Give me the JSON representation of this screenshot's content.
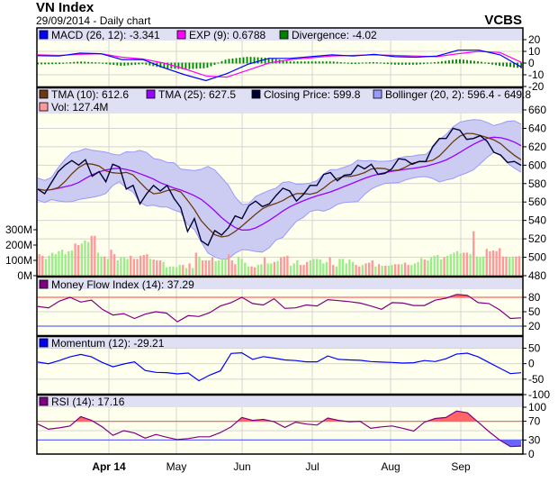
{
  "header": {
    "title": "VN Index",
    "subtitle": "29/09/2014 - Daily chart",
    "source": "VCBS"
  },
  "colors": {
    "plot_bg": "#ffffee",
    "legend_bg": "#e0e0f4",
    "grid": "#d4d4d4",
    "macd": "#0000ff",
    "exp": "#ff00ff",
    "divergence": "#008000",
    "tma10": "#6b3a10",
    "tma25": "#9900ff",
    "close": "#000033",
    "bollinger_fill": "#ccccf2",
    "bollinger_line": "#9999ff",
    "vol_up": "#99ee88",
    "vol_down": "#ff9999",
    "mfi": "#800080",
    "momentum": "#0000ff",
    "rsi": "#800080",
    "overbought": "#ff6666",
    "oversold": "#6666ff"
  },
  "chart_data": {
    "type": "line",
    "title": "VN Index",
    "subtitle": "29/09/2014 - Daily chart",
    "x_ticks": [
      {
        "label": "Apr 14",
        "bold": true
      },
      {
        "label": "May",
        "bold": false
      },
      {
        "label": "Jun",
        "bold": false
      },
      {
        "label": "Jul",
        "bold": false
      },
      {
        "label": "Aug",
        "bold": false
      },
      {
        "label": "Sep",
        "bold": false
      }
    ],
    "grid": true,
    "macd_panel": {
      "legend": {
        "macd": "MACD (26, 12): -3.341",
        "exp": "EXP (9): 0.6788",
        "divergence": "Divergence: -4.02"
      },
      "ylim": [
        -20,
        20
      ],
      "y_ticks": [
        "20",
        "10",
        "0",
        "-10",
        "-20"
      ],
      "macd": [
        6.3,
        6,
        8.5,
        8,
        3,
        3,
        -4,
        -10,
        -15,
        -9,
        -1,
        4,
        4,
        5.5,
        7,
        6,
        7.5,
        5.5,
        5,
        6,
        11,
        11,
        7,
        -3.341
      ],
      "exp": [
        7,
        6.5,
        7.5,
        8,
        5,
        3.5,
        0,
        -5,
        -11,
        -12,
        -6,
        0,
        3,
        4.5,
        6,
        6.5,
        7,
        6.5,
        6,
        5.5,
        8,
        10,
        9,
        0.6788
      ]
    },
    "price_panel": {
      "legend": {
        "tma10": "TMA (10): 612.6",
        "tma25": "TMA (25): 627.5",
        "close": "Closing Price: 599.8",
        "bollinger": "Bollinger (20, 2): 596.4 - 649.8",
        "volume": "Vol: 127.4M"
      },
      "ylim": [
        480,
        660
      ],
      "y_ticks": [
        "660",
        "640",
        "620",
        "600",
        "580",
        "560",
        "540",
        "520",
        "500",
        "480"
      ],
      "volume_ticks": [
        "300M",
        "200M",
        "100M",
        "0M"
      ],
      "volume_unit": "M",
      "close": [
        574,
        569,
        581,
        593,
        600,
        605,
        600,
        606,
        588,
        593,
        582,
        601,
        598,
        574,
        578,
        558,
        569,
        578,
        572,
        578,
        564,
        554,
        528,
        542,
        518,
        513,
        529,
        524,
        532,
        545,
        542,
        556,
        561,
        555,
        558,
        567,
        575,
        572,
        561,
        568,
        578,
        578,
        590,
        592,
        583,
        589,
        590,
        600,
        596,
        601,
        590,
        591,
        596,
        607,
        606,
        601,
        604,
        604,
        620,
        629,
        629,
        640,
        638,
        628,
        629,
        632,
        626,
        614,
        611,
        603,
        604,
        599.8
      ],
      "volume": [
        [
          140,
          "d"
        ],
        [
          130,
          "d"
        ],
        [
          110,
          "u"
        ],
        [
          130,
          "u"
        ],
        [
          150,
          "u"
        ],
        [
          140,
          "u"
        ],
        [
          160,
          "u"
        ],
        [
          170,
          "u"
        ],
        [
          140,
          "u"
        ],
        [
          160,
          "u"
        ],
        [
          165,
          "u"
        ],
        [
          210,
          "d"
        ],
        [
          200,
          "d"
        ],
        [
          210,
          "u"
        ],
        [
          230,
          "u"
        ],
        [
          220,
          "u"
        ],
        [
          260,
          "d"
        ],
        [
          260,
          "d"
        ],
        [
          150,
          "u"
        ],
        [
          125,
          "u"
        ],
        [
          125,
          "d"
        ],
        [
          110,
          "u"
        ],
        [
          170,
          "d"
        ],
        [
          140,
          "d"
        ],
        [
          100,
          "u"
        ],
        [
          120,
          "u"
        ],
        [
          120,
          "u"
        ],
        [
          110,
          "u"
        ],
        [
          130,
          "d"
        ],
        [
          110,
          "d"
        ],
        [
          110,
          "d"
        ],
        [
          130,
          "d"
        ],
        [
          135,
          "d"
        ],
        [
          140,
          "d"
        ],
        [
          110,
          "u"
        ],
        [
          105,
          "d"
        ],
        [
          100,
          "d"
        ],
        [
          100,
          "d"
        ],
        [
          90,
          "u"
        ],
        [
          55,
          "u"
        ],
        [
          60,
          "u"
        ],
        [
          60,
          "u"
        ],
        [
          55,
          "u"
        ],
        [
          70,
          "u"
        ],
        [
          70,
          "d"
        ],
        [
          50,
          "u"
        ],
        [
          80,
          "d"
        ],
        [
          50,
          "u"
        ],
        [
          150,
          "d"
        ],
        [
          125,
          "u"
        ],
        [
          100,
          "d"
        ],
        [
          100,
          "d"
        ],
        [
          100,
          "d"
        ],
        [
          120,
          "d"
        ],
        [
          95,
          "u"
        ],
        [
          100,
          "u"
        ],
        [
          110,
          "u"
        ],
        [
          110,
          "u"
        ],
        [
          140,
          "d"
        ],
        [
          100,
          "d"
        ],
        [
          75,
          "d"
        ],
        [
          120,
          "u"
        ],
        [
          110,
          "u"
        ],
        [
          85,
          "u"
        ],
        [
          60,
          "u"
        ],
        [
          60,
          "d"
        ],
        [
          55,
          "d"
        ],
        [
          70,
          "u"
        ],
        [
          75,
          "u"
        ],
        [
          120,
          "d"
        ],
        [
          80,
          "u"
        ],
        [
          80,
          "u"
        ],
        [
          90,
          "d"
        ],
        [
          95,
          "u"
        ],
        [
          120,
          "d"
        ],
        [
          125,
          "d"
        ],
        [
          130,
          "d"
        ],
        [
          65,
          "u"
        ],
        [
          80,
          "u"
        ],
        [
          100,
          "u"
        ],
        [
          70,
          "d"
        ],
        [
          70,
          "d"
        ],
        [
          90,
          "d"
        ],
        [
          100,
          "u"
        ],
        [
          110,
          "u"
        ],
        [
          110,
          "u"
        ],
        [
          105,
          "u"
        ],
        [
          80,
          "u"
        ],
        [
          90,
          "u"
        ],
        [
          120,
          "d"
        ],
        [
          70,
          "d"
        ],
        [
          60,
          "u"
        ],
        [
          110,
          "u"
        ],
        [
          110,
          "u"
        ],
        [
          80,
          "u"
        ],
        [
          105,
          "u"
        ],
        [
          90,
          "u"
        ],
        [
          70,
          "d"
        ],
        [
          60,
          "d"
        ],
        [
          70,
          "u"
        ],
        [
          80,
          "d"
        ],
        [
          85,
          "d"
        ],
        [
          100,
          "d"
        ],
        [
          60,
          "u"
        ],
        [
          75,
          "d"
        ],
        [
          65,
          "u"
        ],
        [
          65,
          "d"
        ],
        [
          65,
          "u"
        ],
        [
          70,
          "u"
        ],
        [
          75,
          "d"
        ],
        [
          75,
          "d"
        ],
        [
          75,
          "u"
        ],
        [
          85,
          "d"
        ],
        [
          70,
          "d"
        ],
        [
          70,
          "u"
        ],
        [
          80,
          "u"
        ],
        [
          90,
          "u"
        ],
        [
          115,
          "u"
        ],
        [
          105,
          "d"
        ],
        [
          100,
          "u"
        ],
        [
          120,
          "u"
        ],
        [
          130,
          "u"
        ],
        [
          135,
          "u"
        ],
        [
          105,
          "u"
        ],
        [
          120,
          "d"
        ],
        [
          130,
          "u"
        ],
        [
          140,
          "u"
        ],
        [
          150,
          "u"
        ],
        [
          160,
          "u"
        ],
        [
          145,
          "u"
        ],
        [
          150,
          "d"
        ],
        [
          150,
          "d"
        ],
        [
          140,
          "u"
        ],
        [
          290,
          "d"
        ],
        [
          125,
          "u"
        ],
        [
          120,
          "u"
        ],
        [
          125,
          "u"
        ],
        [
          175,
          "d"
        ],
        [
          160,
          "d"
        ],
        [
          165,
          "d"
        ],
        [
          160,
          "d"
        ],
        [
          180,
          "d"
        ],
        [
          125,
          "d"
        ],
        [
          125,
          "d"
        ],
        [
          120,
          "u"
        ],
        [
          125,
          "u"
        ],
        [
          125,
          "d"
        ],
        [
          127.4,
          "d"
        ]
      ]
    },
    "mfi_panel": {
      "legend": "Money Flow Index (14): 37.29",
      "ylim": [
        0,
        100
      ],
      "y_ticks": [
        "80",
        "50",
        "20"
      ],
      "overbought": 80,
      "oversold": 20,
      "values": [
        61,
        58,
        72,
        80,
        70,
        74,
        55,
        43,
        46,
        36,
        45,
        50,
        47,
        29,
        42,
        40,
        48,
        62,
        69,
        80,
        67,
        64,
        77,
        57,
        58,
        64,
        62,
        75,
        73,
        71,
        68,
        62,
        55,
        69,
        68,
        63,
        63,
        74,
        78,
        86,
        84,
        69,
        67,
        54,
        36,
        37.29
      ]
    },
    "momentum_panel": {
      "legend": "Momentum (12): -29.21",
      "ylim": [
        -100,
        50
      ],
      "y_ticks": [
        "50",
        "0",
        "-50",
        "-100"
      ],
      "values": [
        5,
        0,
        10,
        22,
        30,
        22,
        4,
        -10,
        -1,
        6,
        -22,
        -28,
        -29,
        -33,
        -30,
        -55,
        -37,
        -23,
        33,
        35,
        14,
        23,
        18,
        12,
        10,
        6,
        6,
        25,
        14,
        12,
        11,
        7,
        5,
        4,
        2,
        3,
        10,
        7,
        16,
        31,
        34,
        22,
        4,
        -14,
        -32,
        -29.21
      ]
    },
    "rsi_panel": {
      "legend": "RSI (14): 17.16",
      "ylim": [
        0,
        100
      ],
      "y_ticks": [
        "100",
        "70",
        "30",
        "0"
      ],
      "overbought": 70,
      "oversold": 30,
      "values": [
        64,
        53,
        56,
        60,
        80,
        72,
        58,
        40,
        50,
        45,
        34,
        42,
        36,
        31,
        33,
        37,
        37,
        46,
        58,
        78,
        72,
        74,
        69,
        57,
        68,
        64,
        62,
        77,
        72,
        69,
        70,
        55,
        58,
        60,
        55,
        49,
        68,
        76,
        78,
        92,
        88,
        68,
        48,
        30,
        16,
        17.16
      ]
    }
  }
}
